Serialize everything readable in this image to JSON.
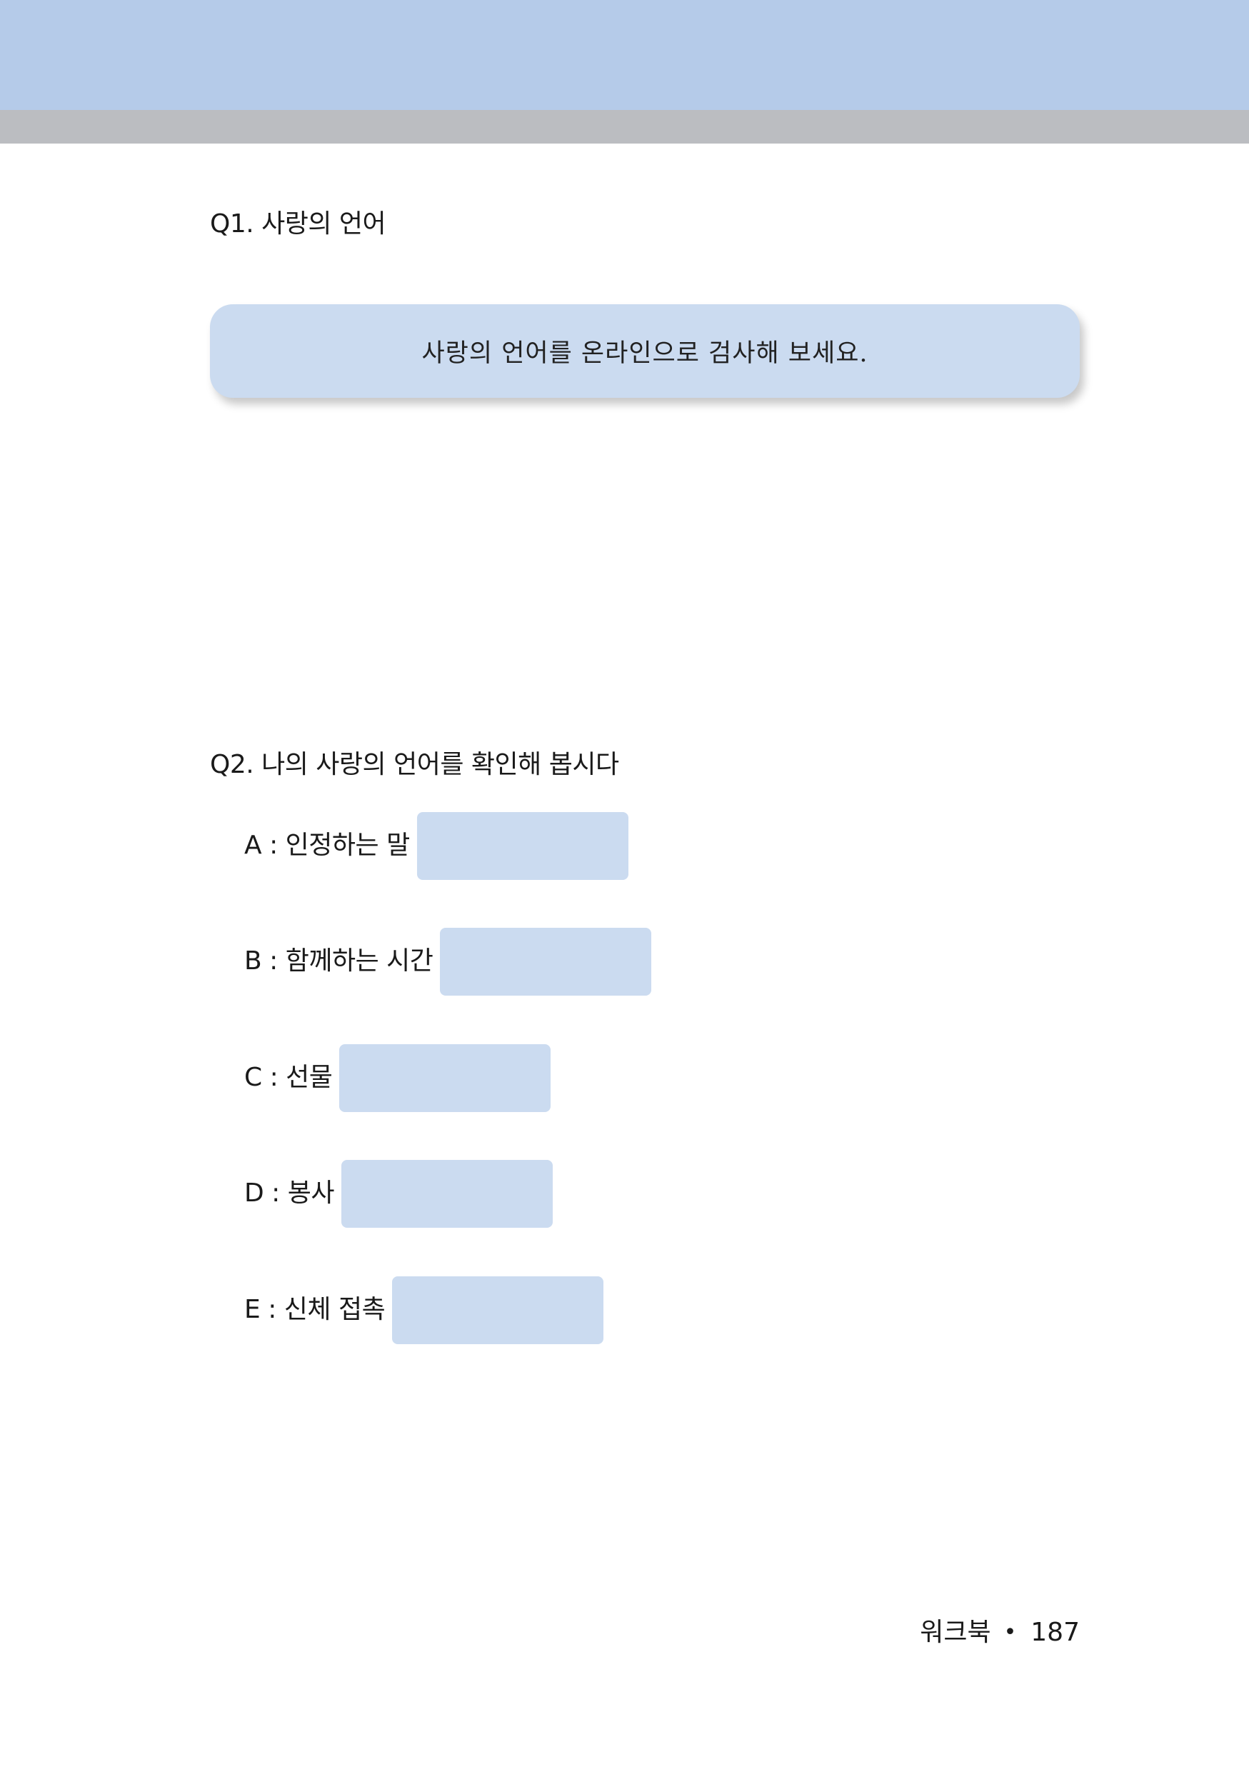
{
  "q1": {
    "title": "Q1. 사랑의 언어",
    "instruction": "사랑의 언어를 온라인으로 검사해 보세요."
  },
  "q2": {
    "title": "Q2. 나의 사랑의 언어를 확인해 봅시다",
    "items": [
      {
        "label": "A : 인정하는 말",
        "value": ""
      },
      {
        "label": "B : 함께하는 시간",
        "value": ""
      },
      {
        "label": "C : 선물",
        "value": ""
      },
      {
        "label": "D : 봉사",
        "value": ""
      },
      {
        "label": "E : 신체 접촉",
        "value": ""
      }
    ]
  },
  "footer": {
    "section": "워크북",
    "separator": "•",
    "page_number": "187"
  },
  "colors": {
    "header_band": "#b5cbe9",
    "header_rule": "#bbbdc1",
    "box_fill": "#cbdbf0"
  }
}
